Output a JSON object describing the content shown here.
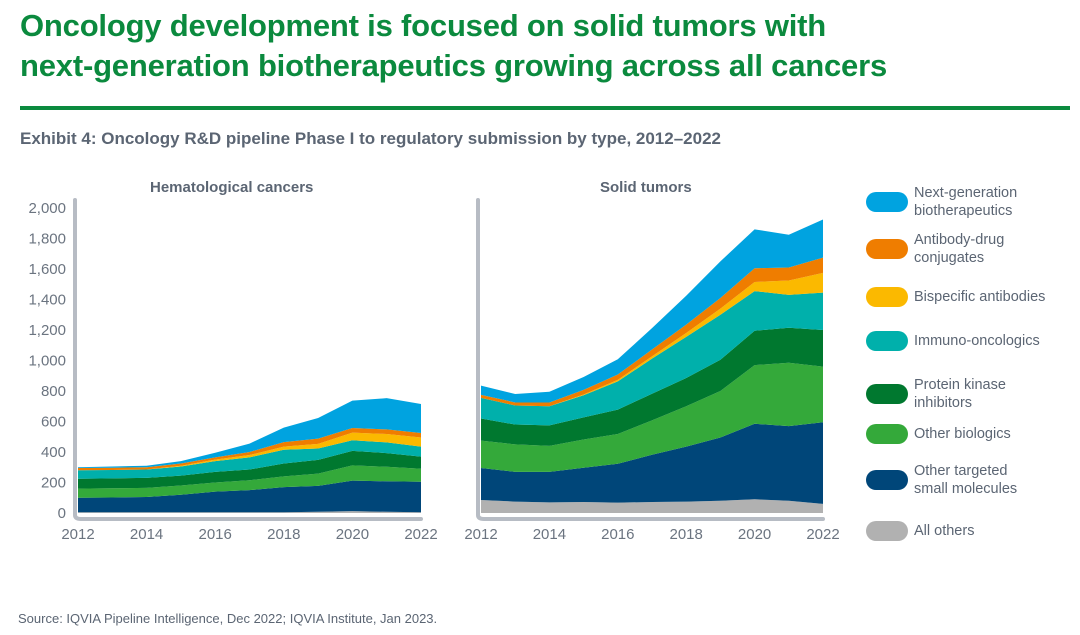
{
  "header": {
    "title_line1": "Oncology development is focused on solid tumors with",
    "title_line2": "next-generation biotherapeutics growing across all cancers",
    "subtitle": "Exhibit 4: Oncology R&D pipeline Phase I to regulatory submission by type, 2012–2022"
  },
  "footer": {
    "source": "Source: IQVIA Pipeline Intelligence, Dec 2022; IQVIA Institute, Jan 2023."
  },
  "legend": [
    {
      "label": "Next-generation\nbiotherapeutics",
      "color": "#00a3e0"
    },
    {
      "label": "Antibody-drug\nconjugates",
      "color": "#ef7d00"
    },
    {
      "label": "Bispecific antibodies",
      "color": "#fbb900"
    },
    {
      "label": "Immuno-oncologics",
      "color": "#00b0ab"
    },
    {
      "label": "Protein kinase\ninhibitors",
      "color": "#00782f"
    },
    {
      "label": "Other biologics",
      "color": "#34a93a"
    },
    {
      "label": "Other targeted\nsmall molecules",
      "color": "#004679"
    },
    {
      "label": "All others",
      "color": "#b1b1b1"
    }
  ],
  "chart_data": [
    {
      "type": "area",
      "stacked": true,
      "title": "Hematological cancers",
      "xlabel": "",
      "ylabel": "",
      "x": [
        2012,
        2013,
        2014,
        2015,
        2016,
        2017,
        2018,
        2019,
        2020,
        2021,
        2022
      ],
      "xticks": [
        "2012",
        "2014",
        "2016",
        "2018",
        "2020",
        "2022"
      ],
      "yticks": [
        "0",
        "200",
        "400",
        "600",
        "800",
        "1,000",
        "1,200",
        "1,400",
        "1,600",
        "1,800",
        "2,000"
      ],
      "ylim": [
        0,
        2000
      ],
      "grid": false,
      "series": [
        {
          "name": "All others",
          "values": [
            5,
            5,
            5,
            5,
            5,
            5,
            5,
            8,
            12,
            8,
            5
          ]
        },
        {
          "name": "Other targeted small molecules",
          "values": [
            95,
            97,
            100,
            115,
            135,
            145,
            165,
            170,
            200,
            200,
            200
          ]
        },
        {
          "name": "Other biologics",
          "values": [
            60,
            60,
            60,
            60,
            60,
            65,
            70,
            80,
            100,
            95,
            85
          ]
        },
        {
          "name": "Protein kinase inhibitors",
          "values": [
            65,
            65,
            65,
            65,
            70,
            70,
            85,
            90,
            95,
            90,
            80
          ]
        },
        {
          "name": "Immuno-oncologics",
          "values": [
            55,
            55,
            55,
            60,
            70,
            80,
            90,
            75,
            70,
            70,
            65
          ]
        },
        {
          "name": "Bispecific antibodies",
          "values": [
            0,
            0,
            0,
            5,
            10,
            15,
            20,
            30,
            50,
            55,
            60
          ]
        },
        {
          "name": "Antibody-drug conjugates",
          "values": [
            15,
            15,
            15,
            15,
            15,
            20,
            30,
            35,
            30,
            30,
            30
          ]
        },
        {
          "name": "Next-generation biotherapeutics",
          "values": [
            5,
            8,
            10,
            15,
            30,
            55,
            95,
            135,
            180,
            205,
            190
          ]
        }
      ]
    },
    {
      "type": "area",
      "stacked": true,
      "title": "Solid tumors",
      "xlabel": "",
      "ylabel": "",
      "x": [
        2012,
        2013,
        2014,
        2015,
        2016,
        2017,
        2018,
        2019,
        2020,
        2021,
        2022
      ],
      "xticks": [
        "2012",
        "2014",
        "2016",
        "2018",
        "2020",
        "2022"
      ],
      "ylim": [
        0,
        2000
      ],
      "grid": false,
      "series": [
        {
          "name": "All others",
          "values": [
            85,
            75,
            70,
            72,
            68,
            72,
            75,
            80,
            90,
            80,
            60
          ]
        },
        {
          "name": "Other targeted small molecules",
          "values": [
            210,
            195,
            200,
            225,
            255,
            310,
            360,
            415,
            495,
            490,
            535
          ]
        },
        {
          "name": "Other biologics",
          "values": [
            180,
            180,
            170,
            185,
            195,
            225,
            265,
            305,
            385,
            415,
            365
          ]
        },
        {
          "name": "Protein kinase inhibitors",
          "values": [
            145,
            130,
            135,
            145,
            160,
            175,
            185,
            205,
            225,
            230,
            240
          ]
        },
        {
          "name": "Immuno-oncologics",
          "values": [
            135,
            125,
            125,
            145,
            185,
            230,
            270,
            295,
            260,
            215,
            245
          ]
        },
        {
          "name": "Bispecific antibodies",
          "values": [
            0,
            0,
            0,
            5,
            10,
            15,
            25,
            40,
            60,
            95,
            130
          ]
        },
        {
          "name": "Antibody-drug conjugates",
          "values": [
            20,
            20,
            25,
            30,
            35,
            45,
            55,
            70,
            90,
            85,
            100
          ]
        },
        {
          "name": "Next-generation biotherapeutics",
          "values": [
            60,
            55,
            70,
            85,
            100,
            140,
            190,
            240,
            255,
            215,
            250
          ]
        }
      ]
    }
  ]
}
